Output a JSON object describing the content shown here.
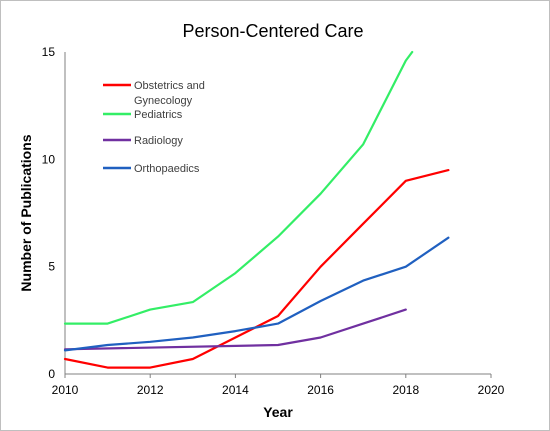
{
  "chart_data": {
    "type": "line",
    "title": "Person-Centered Care",
    "xlabel": "Year",
    "ylabel": "Number of Publications",
    "xlim": [
      2010,
      2020
    ],
    "ylim": [
      0,
      15
    ],
    "x_ticks": [
      "2010",
      "2012",
      "2014",
      "2016",
      "2018",
      "2020"
    ],
    "y_ticks": [
      "0",
      "5",
      "10",
      "15"
    ],
    "grid": false,
    "legend_position": "top-left inside plot",
    "legend": [
      {
        "lines": [
          "Obstetrics and",
          "Gynecology"
        ],
        "color": "#ff0000"
      },
      {
        "lines": [
          "Pediatrics"
        ],
        "color": "#33ee66"
      },
      {
        "lines": [
          "Radiology"
        ],
        "color": "#7030a0"
      },
      {
        "lines": [
          "Orthopaedics"
        ],
        "color": "#2060c0"
      }
    ],
    "series": [
      {
        "color": "#ff0000",
        "x": [
          2010,
          2011,
          2012,
          2013,
          2014,
          2015,
          2016,
          2017,
          2018,
          2019
        ],
        "y": [
          0.7,
          0.3,
          0.3,
          0.7,
          1.7,
          2.7,
          5.0,
          7.0,
          9.0,
          9.5
        ]
      },
      {
        "color": "#33ee66",
        "x": [
          2010,
          2011,
          2012,
          2013,
          2014,
          2015,
          2016,
          2017,
          2018,
          2018.15
        ],
        "y": [
          2.35,
          2.35,
          3.0,
          3.35,
          4.7,
          6.4,
          8.4,
          10.7,
          14.6,
          15.0
        ]
      },
      {
        "color": "#7030a0",
        "x": [
          2010,
          2015,
          2016,
          2017,
          2018
        ],
        "y": [
          1.15,
          1.35,
          1.7,
          2.35,
          3.0
        ]
      },
      {
        "color": "#2060c0",
        "x": [
          2010,
          2011,
          2012,
          2013,
          2014,
          2015,
          2016,
          2017,
          2018,
          2019
        ],
        "y": [
          1.1,
          1.35,
          1.5,
          1.7,
          2.0,
          2.35,
          3.4,
          4.35,
          5.0,
          6.35
        ]
      }
    ]
  }
}
